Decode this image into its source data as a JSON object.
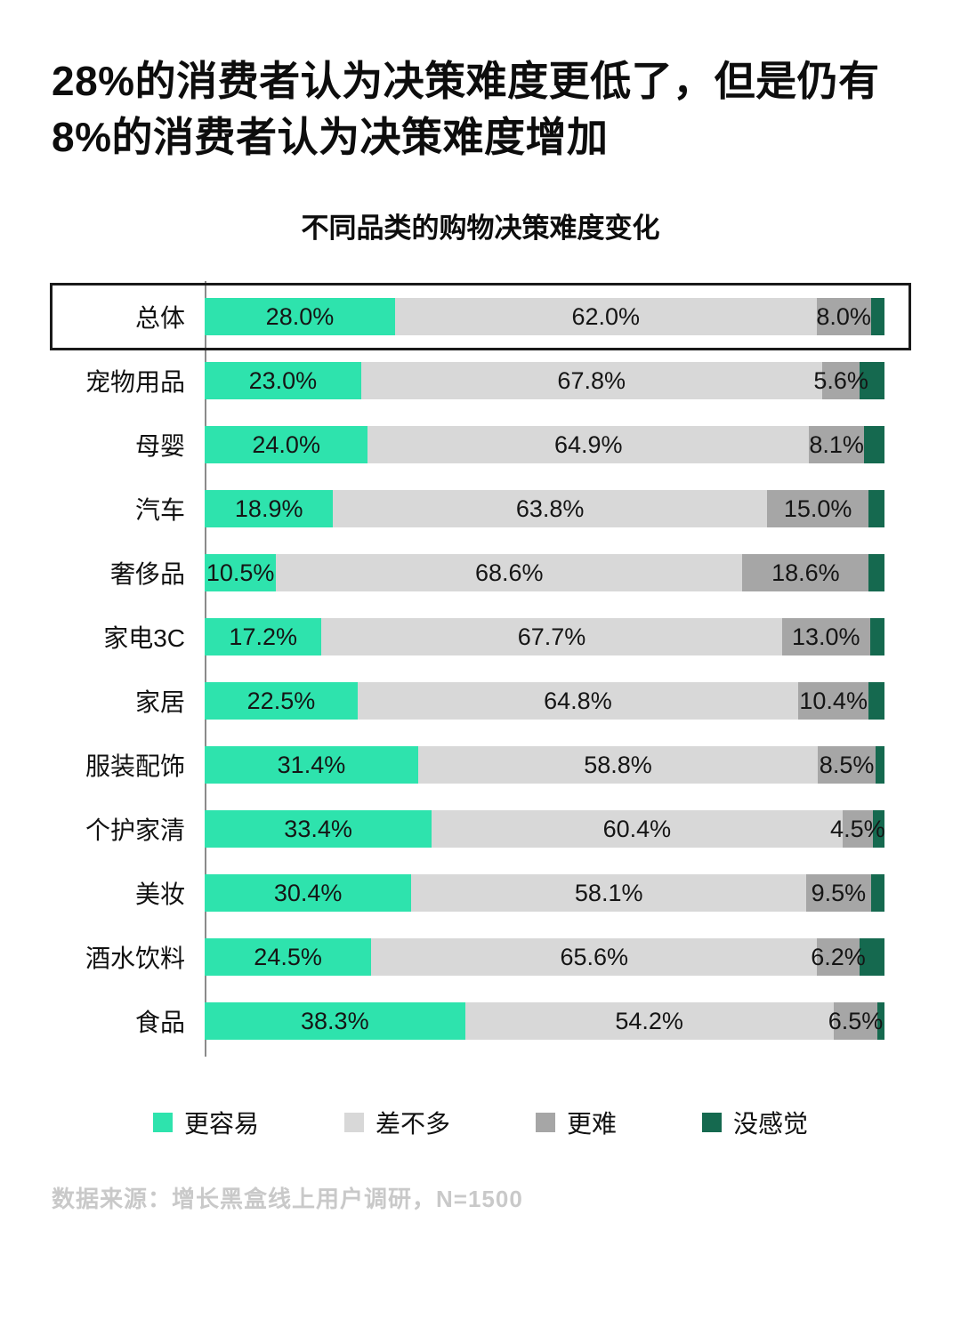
{
  "header": {
    "title": "28%的消费者认为决策难度更低了，但是仍有8%的消费者认为决策难度增加"
  },
  "chart_data": {
    "type": "bar",
    "variant": "horizontal-stacked-100",
    "title": "不同品类的购物决策难度变化",
    "unit": "%",
    "highlighted_index": 0,
    "highlighted_category": "总体",
    "categories": [
      "总体",
      "宠物用品",
      "母婴",
      "汽车",
      "奢侈品",
      "家电3C",
      "家居",
      "服装配饰",
      "个护家清",
      "美妆",
      "酒水饮料",
      "食品"
    ],
    "series": [
      {
        "name": "更容易",
        "color": "#2EE3AD",
        "values": [
          28.0,
          23.0,
          24.0,
          18.9,
          10.5,
          17.2,
          22.5,
          31.4,
          33.4,
          30.4,
          24.5,
          38.3
        ],
        "labels": [
          "28.0%",
          "23.0%",
          "24.0%",
          "18.9%",
          "10.5%",
          "17.2%",
          "22.5%",
          "31.4%",
          "33.4%",
          "30.4%",
          "24.5%",
          "38.3%"
        ]
      },
      {
        "name": "差不多",
        "color": "#D8D8D8",
        "values": [
          62.0,
          67.8,
          64.9,
          63.8,
          68.6,
          67.7,
          64.8,
          58.8,
          60.4,
          58.1,
          65.6,
          54.2
        ],
        "labels": [
          "62.0%",
          "67.8%",
          "64.9%",
          "63.8%",
          "68.6%",
          "67.7%",
          "64.8%",
          "58.8%",
          "60.4%",
          "58.1%",
          "65.6%",
          "54.2%"
        ]
      },
      {
        "name": "更难",
        "color": "#A6A6A6",
        "values": [
          8.0,
          5.6,
          8.1,
          15.0,
          18.6,
          13.0,
          10.4,
          8.5,
          4.5,
          9.5,
          6.2,
          6.5
        ],
        "labels": [
          "8.0%",
          "5.6%",
          "8.1%",
          "15.0%",
          "18.6%",
          "13.0%",
          "10.4%",
          "8.5%",
          "4.5%",
          "9.5%",
          "6.2%",
          "6.5%"
        ]
      },
      {
        "name": "没感觉",
        "color": "#15694F",
        "values": [
          2.0,
          3.6,
          3.0,
          2.3,
          2.3,
          2.1,
          2.3,
          1.3,
          1.7,
          2.0,
          3.7,
          1.0
        ]
      }
    ],
    "legend_position": "bottom",
    "grid": false,
    "xlim": [
      0,
      100
    ]
  },
  "legend": {
    "items": [
      {
        "label": "更容易",
        "color": "#2EE3AD"
      },
      {
        "label": "差不多",
        "color": "#D8D8D8"
      },
      {
        "label": "更难",
        "color": "#A6A6A6"
      },
      {
        "label": "没感觉",
        "color": "#15694F"
      }
    ]
  },
  "footer": {
    "text": "数据来源：增长黑盒线上用户调研，N=1500"
  }
}
